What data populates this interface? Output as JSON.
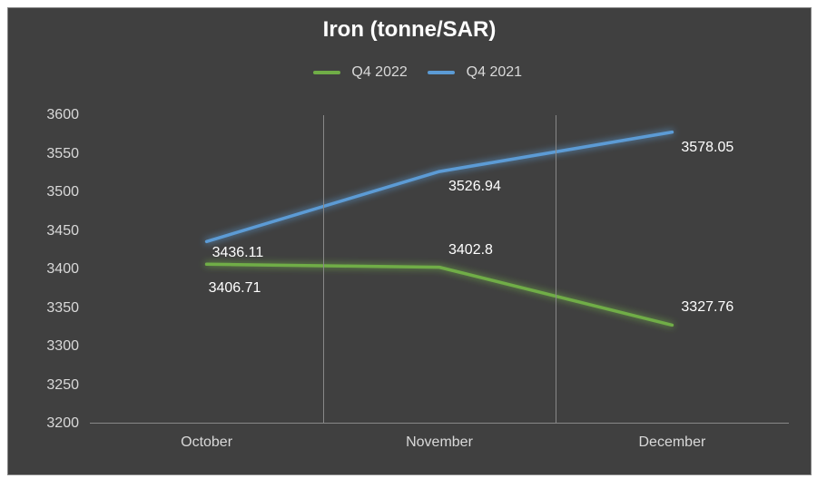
{
  "chart": {
    "type": "line",
    "title": "Iron (tonne/SAR)",
    "title_fontsize": 24,
    "title_fontweight": "bold",
    "title_color": "#ffffff",
    "background_color": "#404040",
    "outer_border_color": "#888888",
    "text_color": "#d9d9d9",
    "grid_color": "#888888",
    "font_family": "Arial",
    "label_fontsize": 16,
    "data_label_color": "#ffffff",
    "categories": [
      "October",
      "November",
      "December"
    ],
    "ylim": [
      3200,
      3600
    ],
    "ytick_step": 50,
    "yticks": [
      3200,
      3250,
      3300,
      3350,
      3400,
      3450,
      3500,
      3550,
      3600
    ],
    "x_positions": [
      0.167,
      0.5,
      0.833
    ],
    "legend_position": "top",
    "series": [
      {
        "name": "Q4 2022",
        "color": "#70ad47",
        "glow_color": "#70ad47",
        "glow": true,
        "line_width": 3.5,
        "values": [
          3406.71,
          3402.8,
          3327.76
        ],
        "labels": [
          "3406.71",
          "3402.8",
          "3327.76"
        ],
        "label_visible": [
          false,
          true,
          true
        ]
      },
      {
        "name": "Q4 2021",
        "color": "#5b9bd5",
        "glow_color": "#5b9bd5",
        "glow": true,
        "line_width": 3.5,
        "values": [
          3436.11,
          3526.94,
          3578.05
        ],
        "labels": [
          "3436.11",
          "3526.94",
          "3578.05"
        ],
        "label_visible": [
          true,
          true,
          true
        ]
      }
    ],
    "overlap_label": "3406.71"
  }
}
